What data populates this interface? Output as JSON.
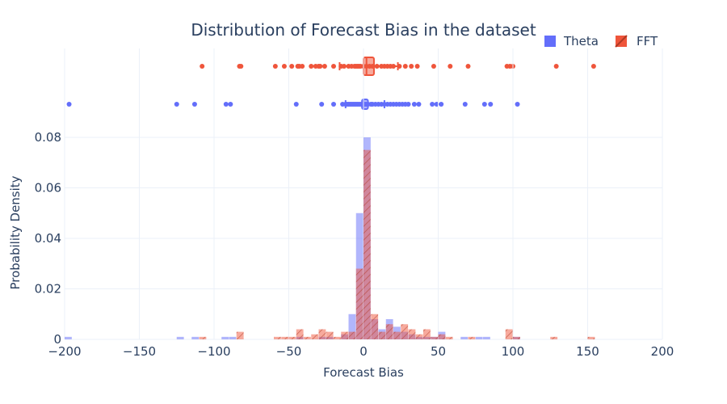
{
  "chart_data": {
    "type": "histogram",
    "title": "Distribution of Forecast Bias in the dataset",
    "xlabel": "Forecast Bias",
    "ylabel": "Probability Density",
    "xlim": [
      -200,
      200
    ],
    "ylim": [
      0,
      0.08
    ],
    "xticks": [
      "−200",
      "−150",
      "−100",
      "−50",
      "0",
      "50",
      "100",
      "150",
      "200"
    ],
    "yticks": [
      "0",
      "0.02",
      "0.04",
      "0.06",
      "0.08"
    ],
    "bin_width": 5,
    "grid": true,
    "legend_position": "top-right",
    "series": [
      {
        "name": "Theta",
        "color": "#636efa",
        "bins": [
          {
            "x": -200,
            "density": 0.001
          },
          {
            "x": -125,
            "density": 0.001
          },
          {
            "x": -115,
            "density": 0.001
          },
          {
            "x": -95,
            "density": 0.001
          },
          {
            "x": -90,
            "density": 0.001
          },
          {
            "x": -45,
            "density": 0.001
          },
          {
            "x": -30,
            "density": 0.001
          },
          {
            "x": -25,
            "density": 0.001
          },
          {
            "x": -15,
            "density": 0.002
          },
          {
            "x": -10,
            "density": 0.01
          },
          {
            "x": -5,
            "density": 0.05
          },
          {
            "x": 0,
            "density": 0.08
          },
          {
            "x": 5,
            "density": 0.008
          },
          {
            "x": 10,
            "density": 0.004
          },
          {
            "x": 15,
            "density": 0.008
          },
          {
            "x": 20,
            "density": 0.005
          },
          {
            "x": 25,
            "density": 0.003
          },
          {
            "x": 30,
            "density": 0.002
          },
          {
            "x": 35,
            "density": 0.001
          },
          {
            "x": 40,
            "density": 0.001
          },
          {
            "x": 45,
            "density": 0.001
          },
          {
            "x": 50,
            "density": 0.003
          },
          {
            "x": 65,
            "density": 0.001
          },
          {
            "x": 75,
            "density": 0.001
          },
          {
            "x": 80,
            "density": 0.001
          },
          {
            "x": 100,
            "density": 0.001
          }
        ],
        "points": [
          -197,
          -125,
          -113,
          -92,
          -89,
          -45,
          -28,
          -20,
          -14,
          -12,
          -11,
          -10,
          -9,
          -8,
          -7,
          -6,
          -5,
          -4,
          -3,
          -2,
          -1,
          0,
          1,
          2,
          3,
          5,
          6,
          8,
          10,
          12,
          14,
          16,
          18,
          20,
          22,
          24,
          26,
          28,
          30,
          34,
          37,
          46,
          49,
          52,
          68,
          81,
          85,
          103
        ],
        "box": {
          "q1": -1,
          "median": 0,
          "q3": 3,
          "lowerfence": -12,
          "upperfence": 14
        }
      },
      {
        "name": "FFT",
        "color": "#ef553b",
        "bins": [
          {
            "x": -110,
            "density": 0.001
          },
          {
            "x": -85,
            "density": 0.003
          },
          {
            "x": -60,
            "density": 0.001
          },
          {
            "x": -55,
            "density": 0.001
          },
          {
            "x": -50,
            "density": 0.001
          },
          {
            "x": -45,
            "density": 0.004
          },
          {
            "x": -40,
            "density": 0.001
          },
          {
            "x": -35,
            "density": 0.002
          },
          {
            "x": -30,
            "density": 0.004
          },
          {
            "x": -25,
            "density": 0.003
          },
          {
            "x": -20,
            "density": 0.001
          },
          {
            "x": -15,
            "density": 0.003
          },
          {
            "x": -10,
            "density": 0.003
          },
          {
            "x": -5,
            "density": 0.028
          },
          {
            "x": 0,
            "density": 0.075
          },
          {
            "x": 5,
            "density": 0.01
          },
          {
            "x": 10,
            "density": 0.003
          },
          {
            "x": 15,
            "density": 0.006
          },
          {
            "x": 20,
            "density": 0.003
          },
          {
            "x": 25,
            "density": 0.006
          },
          {
            "x": 30,
            "density": 0.004
          },
          {
            "x": 35,
            "density": 0.002
          },
          {
            "x": 40,
            "density": 0.004
          },
          {
            "x": 45,
            "density": 0.001
          },
          {
            "x": 50,
            "density": 0.002
          },
          {
            "x": 55,
            "density": 0.001
          },
          {
            "x": 70,
            "density": 0.001
          },
          {
            "x": 95,
            "density": 0.004
          },
          {
            "x": 100,
            "density": 0.001
          },
          {
            "x": 125,
            "density": 0.001
          },
          {
            "x": 150,
            "density": 0.001
          }
        ],
        "points": [
          -108,
          -83,
          -82,
          -59,
          -53,
          -48,
          -44,
          -43,
          -41,
          -35,
          -32,
          -30,
          -29,
          -26,
          -20,
          -15,
          -13,
          -10,
          -8,
          -6,
          -5,
          -4,
          -3,
          -2,
          0,
          2,
          4,
          6,
          9,
          12,
          14,
          16,
          18,
          20,
          24,
          28,
          32,
          36,
          47,
          58,
          70,
          96,
          98,
          100,
          129,
          154
        ],
        "box": {
          "q1": 0,
          "median": 2,
          "q3": 7,
          "lowerfence": -16,
          "upperfence": 23
        }
      }
    ]
  }
}
